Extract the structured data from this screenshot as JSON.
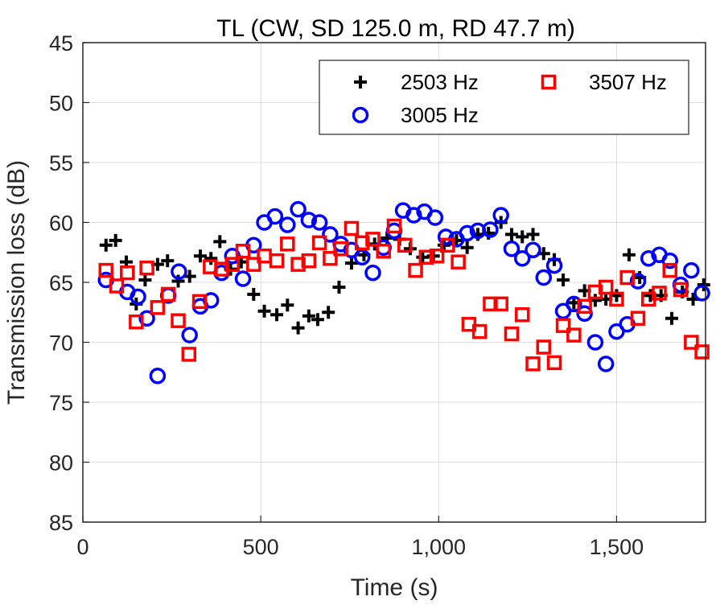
{
  "chart_data": {
    "type": "scatter",
    "title": "TL (CW, SD 125.0 m, RD 47.7 m)",
    "xlabel": "Time (s)",
    "ylabel": "Transmission loss (dB)",
    "xlim": [
      0,
      1750
    ],
    "ylim": [
      45,
      85
    ],
    "y_reversed": true,
    "grid": true,
    "x_ticks": [
      0,
      500,
      1000,
      1500
    ],
    "x_tick_labels": [
      "0",
      "500",
      "1,000",
      "1,500"
    ],
    "y_ticks": [
      45,
      50,
      55,
      60,
      65,
      70,
      75,
      80,
      85
    ],
    "y_tick_labels": [
      "45",
      "50",
      "55",
      "60",
      "65",
      "70",
      "75",
      "80",
      "85"
    ],
    "legend": {
      "placement": "top-right",
      "columns": 2
    },
    "series": [
      {
        "name": "2503 Hz",
        "marker": "plus",
        "color": "#000000",
        "points": [
          [
            65,
            61.9
          ],
          [
            92,
            61.5
          ],
          [
            122,
            63.3
          ],
          [
            150,
            66.8
          ],
          [
            175,
            64.8
          ],
          [
            210,
            63.5
          ],
          [
            238,
            63.2
          ],
          [
            268,
            64.9
          ],
          [
            300,
            64.5
          ],
          [
            330,
            62.8
          ],
          [
            360,
            63.0
          ],
          [
            385,
            61.6
          ],
          [
            415,
            63.9
          ],
          [
            445,
            63.3
          ],
          [
            480,
            66.0
          ],
          [
            510,
            67.4
          ],
          [
            545,
            67.7
          ],
          [
            575,
            66.9
          ],
          [
            605,
            68.8
          ],
          [
            635,
            67.8
          ],
          [
            660,
            68.1
          ],
          [
            690,
            67.5
          ],
          [
            720,
            65.4
          ],
          [
            755,
            63.4
          ],
          [
            790,
            62.7
          ],
          [
            820,
            61.8
          ],
          [
            855,
            61.3
          ],
          [
            890,
            61.4
          ],
          [
            920,
            62.2
          ],
          [
            955,
            62.9
          ],
          [
            985,
            62.8
          ],
          [
            1015,
            61.9
          ],
          [
            1050,
            61.5
          ],
          [
            1080,
            62.1
          ],
          [
            1110,
            61.0
          ],
          [
            1140,
            60.9
          ],
          [
            1175,
            60.0
          ],
          [
            1205,
            61.0
          ],
          [
            1235,
            61.2
          ],
          [
            1265,
            61.0
          ],
          [
            1295,
            62.6
          ],
          [
            1325,
            63.1
          ],
          [
            1350,
            64.8
          ],
          [
            1380,
            66.7
          ],
          [
            1410,
            65.7
          ],
          [
            1440,
            66.5
          ],
          [
            1470,
            66.4
          ],
          [
            1500,
            66.1
          ],
          [
            1535,
            62.7
          ],
          [
            1565,
            64.6
          ],
          [
            1595,
            66.1
          ],
          [
            1625,
            66.1
          ],
          [
            1655,
            68.0
          ],
          [
            1685,
            65.8
          ],
          [
            1715,
            66.4
          ],
          [
            1745,
            65.2
          ]
        ]
      },
      {
        "name": "3005 Hz",
        "marker": "circle",
        "color": "#0000ff",
        "points": [
          [
            65,
            64.8
          ],
          [
            125,
            65.8
          ],
          [
            155,
            66.2
          ],
          [
            180,
            68.0
          ],
          [
            210,
            72.8
          ],
          [
            240,
            66.1
          ],
          [
            270,
            64.1
          ],
          [
            300,
            69.4
          ],
          [
            330,
            67.0
          ],
          [
            360,
            66.5
          ],
          [
            390,
            64.2
          ],
          [
            420,
            62.8
          ],
          [
            450,
            64.7
          ],
          [
            480,
            61.9
          ],
          [
            510,
            60.0
          ],
          [
            540,
            59.5
          ],
          [
            575,
            60.2
          ],
          [
            605,
            58.9
          ],
          [
            635,
            59.8
          ],
          [
            665,
            60.0
          ],
          [
            695,
            61.0
          ],
          [
            725,
            61.8
          ],
          [
            755,
            62.3
          ],
          [
            785,
            62.9
          ],
          [
            815,
            64.2
          ],
          [
            845,
            62.1
          ],
          [
            875,
            60.7
          ],
          [
            900,
            59.0
          ],
          [
            930,
            59.4
          ],
          [
            960,
            59.1
          ],
          [
            990,
            59.6
          ],
          [
            1020,
            61.2
          ],
          [
            1050,
            61.4
          ],
          [
            1080,
            60.9
          ],
          [
            1110,
            60.7
          ],
          [
            1145,
            60.6
          ],
          [
            1175,
            59.4
          ],
          [
            1205,
            62.2
          ],
          [
            1235,
            63.0
          ],
          [
            1265,
            62.3
          ],
          [
            1295,
            64.6
          ],
          [
            1325,
            63.6
          ],
          [
            1350,
            67.4
          ],
          [
            1380,
            66.8
          ],
          [
            1410,
            67.6
          ],
          [
            1440,
            70.0
          ],
          [
            1470,
            71.8
          ],
          [
            1500,
            69.1
          ],
          [
            1530,
            68.5
          ],
          [
            1560,
            64.9
          ],
          [
            1590,
            63.0
          ],
          [
            1620,
            62.7
          ],
          [
            1650,
            63.2
          ],
          [
            1680,
            65.2
          ],
          [
            1710,
            64.0
          ],
          [
            1740,
            65.9
          ]
        ]
      },
      {
        "name": "3507 Hz",
        "marker": "square",
        "color": "#ff0000",
        "points": [
          [
            65,
            64.0
          ],
          [
            95,
            65.3
          ],
          [
            125,
            64.2
          ],
          [
            150,
            68.3
          ],
          [
            180,
            63.8
          ],
          [
            210,
            67.1
          ],
          [
            240,
            66.0
          ],
          [
            268,
            68.2
          ],
          [
            298,
            71.0
          ],
          [
            328,
            66.6
          ],
          [
            358,
            63.7
          ],
          [
            390,
            63.9
          ],
          [
            420,
            63.5
          ],
          [
            450,
            62.4
          ],
          [
            480,
            63.5
          ],
          [
            510,
            62.8
          ],
          [
            545,
            63.2
          ],
          [
            575,
            61.8
          ],
          [
            605,
            63.5
          ],
          [
            635,
            63.2
          ],
          [
            665,
            61.7
          ],
          [
            695,
            63.0
          ],
          [
            725,
            62.2
          ],
          [
            755,
            60.5
          ],
          [
            785,
            61.7
          ],
          [
            815,
            61.4
          ],
          [
            845,
            62.4
          ],
          [
            875,
            60.3
          ],
          [
            905,
            61.9
          ],
          [
            935,
            64.0
          ],
          [
            965,
            62.9
          ],
          [
            995,
            62.8
          ],
          [
            1025,
            61.9
          ],
          [
            1055,
            63.3
          ],
          [
            1085,
            68.5
          ],
          [
            1115,
            69.1
          ],
          [
            1145,
            66.8
          ],
          [
            1175,
            66.8
          ],
          [
            1205,
            69.3
          ],
          [
            1235,
            67.7
          ],
          [
            1265,
            71.8
          ],
          [
            1295,
            70.4
          ],
          [
            1325,
            71.7
          ],
          [
            1350,
            68.6
          ],
          [
            1380,
            69.4
          ],
          [
            1410,
            67.0
          ],
          [
            1440,
            65.8
          ],
          [
            1470,
            65.4
          ],
          [
            1500,
            66.4
          ],
          [
            1530,
            64.6
          ],
          [
            1560,
            68.0
          ],
          [
            1590,
            66.4
          ],
          [
            1620,
            65.9
          ],
          [
            1650,
            64.0
          ],
          [
            1680,
            65.6
          ],
          [
            1710,
            70.0
          ],
          [
            1740,
            70.8
          ]
        ]
      }
    ]
  }
}
